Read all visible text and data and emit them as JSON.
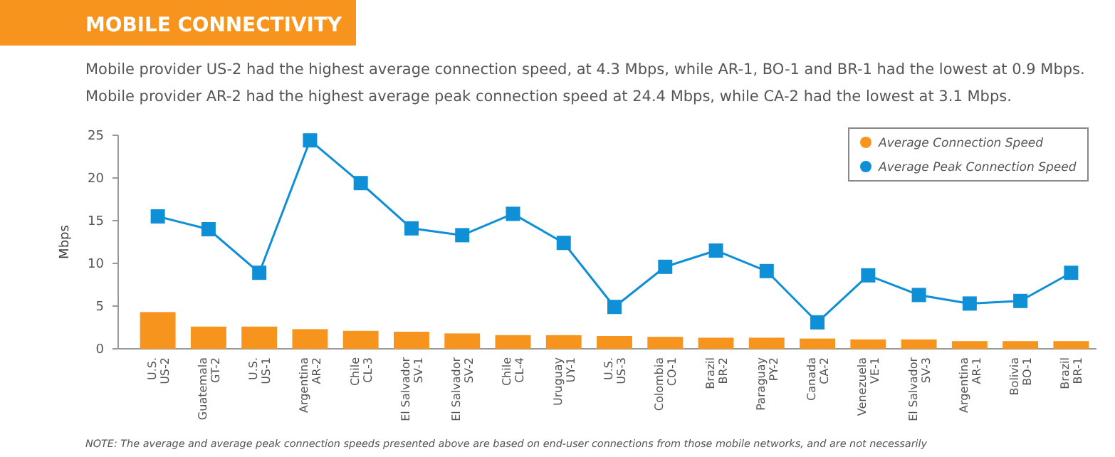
{
  "chart_data": {
    "type": "bar",
    "title": "MOBILE CONNECTIVITY",
    "subtitle": "Mobile provider US-2 had the highest average connection speed, at 4.3 Mbps, while AR-1, BO-1 and BR-1 had the lowest at 0.9 Mbps.\nMobile provider AR-2 had the highest average peak connection speed at 24.4 Mbps, while CA-2 had the lowest at 3.1 Mbps.",
    "ylabel": "Mbps",
    "categories": [
      "U.S.\nUS-2",
      "Guatemala\nGT-2",
      "U.S.\nUS-1",
      "Argentina\nAR-2",
      "Chile\nCL-3",
      "El Salvador\nSV-1",
      "El Salvador\nSV-2",
      "Chile\nCL-4",
      "Uruguay\nUY-1",
      "U.S.\nUS-3",
      "Colombia\nCO-1",
      "Brazil\nBR-2",
      "Paraguay\nPY-2",
      "Canada\nCA-2",
      "Venezuela\nVE-1",
      "El Salvador\nSV-3",
      "Argentina\nAR-1",
      "Bolivia\nBO-1",
      "Brazil\nBR-1"
    ],
    "series": [
      {
        "name": "Average Connection Speed",
        "color": "#f7941d",
        "values": [
          4.3,
          2.6,
          2.6,
          2.3,
          2.1,
          2.0,
          1.8,
          1.6,
          1.6,
          1.5,
          1.4,
          1.3,
          1.3,
          1.2,
          1.1,
          1.1,
          0.9,
          0.9,
          0.9
        ]
      },
      {
        "name": "Average Peak Connection Speed",
        "type": "line",
        "color": "#0f8fd6",
        "marker": "square",
        "values": [
          15.5,
          14.0,
          8.9,
          24.4,
          19.4,
          14.1,
          13.3,
          15.8,
          12.4,
          4.9,
          9.6,
          11.5,
          9.1,
          3.1,
          8.6,
          6.3,
          5.3,
          5.6,
          8.9
        ]
      }
    ],
    "ylim": [
      0,
      25
    ],
    "yticks": [
      0,
      5,
      10,
      15,
      20,
      25
    ],
    "grid": false,
    "legend": "top right",
    "annotations": [
      "NOTE: The average and average peak connection speeds presented above are based on end-user connections from those mobile networks, and are not necessarily"
    ]
  }
}
